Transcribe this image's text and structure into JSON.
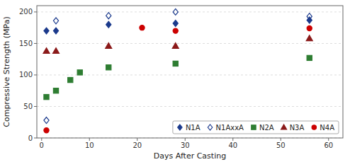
{
  "chart_data": {
    "type": "scatter",
    "xlabel": "Days After Casting",
    "ylabel": "Compressive Strength (MPa)",
    "xlim": [
      -1,
      63
    ],
    "ylim": [
      0,
      210
    ],
    "xticks": [
      0,
      10,
      20,
      30,
      40,
      50,
      60
    ],
    "yticks": [
      0,
      50,
      100,
      150,
      200
    ],
    "grid": "y",
    "legend": "lower right",
    "series": [
      {
        "name": "N1A",
        "color": "#1b3a8c",
        "marker": "diamond",
        "x": [
          1,
          3,
          14,
          28,
          56
        ],
        "values": [
          170,
          170,
          180,
          182,
          187
        ]
      },
      {
        "name": "N1AxxA",
        "color": "#1b3a8c",
        "marker": "open-diamond",
        "x": [
          1,
          3,
          14,
          28,
          56
        ],
        "values": [
          28,
          186,
          194,
          200,
          193
        ]
      },
      {
        "name": "N2A",
        "color": "#2e7d32",
        "marker": "square",
        "x": [
          1,
          3,
          6,
          8,
          14,
          28,
          56
        ],
        "values": [
          65,
          75,
          92,
          104,
          112,
          118,
          127
        ]
      },
      {
        "name": "N3A",
        "color": "#8b1a1a",
        "marker": "triangle",
        "x": [
          1,
          3,
          14,
          28,
          56
        ],
        "values": [
          138,
          138,
          146,
          146,
          158
        ]
      },
      {
        "name": "N4A",
        "color": "#cc0000",
        "marker": "circle",
        "x": [
          1,
          21,
          28,
          56
        ],
        "values": [
          12,
          175,
          170,
          174
        ]
      }
    ]
  }
}
